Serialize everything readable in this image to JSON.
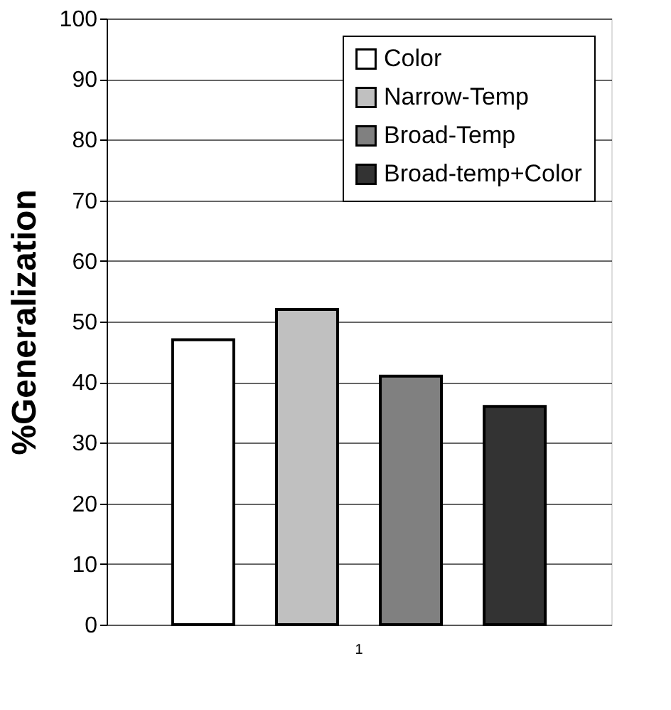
{
  "chart_data": {
    "type": "bar",
    "ylabel": "%Generalization",
    "categories": [
      "1"
    ],
    "series": [
      {
        "name": "Color",
        "color": "#ffffff",
        "values": [
          47
        ]
      },
      {
        "name": "Narrow-Temp",
        "color": "#c0c0c0",
        "values": [
          52
        ]
      },
      {
        "name": "Broad-Temp",
        "color": "#808080",
        "values": [
          41
        ]
      },
      {
        "name": "Broad-temp+Color",
        "color": "#333333",
        "values": [
          36
        ]
      }
    ],
    "ylim": [
      0,
      100
    ],
    "yticks": [
      0,
      10,
      20,
      30,
      40,
      50,
      60,
      70,
      80,
      90,
      100
    ],
    "grid": "y",
    "legend": "top right"
  }
}
